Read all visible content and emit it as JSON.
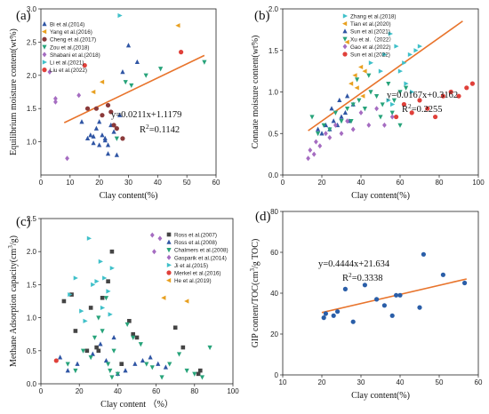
{
  "chart_data": [
    {
      "type": "scatter",
      "panel_label": "(a)",
      "xlabel": "Clay content(%)",
      "ylabel": "Equilibrium moisture content(wt%)",
      "xlim": [
        0,
        60
      ],
      "ylim": [
        0.5,
        3.0
      ],
      "xticks": [
        0,
        10,
        20,
        30,
        40,
        50,
        60
      ],
      "yticks": [
        1.0,
        1.5,
        2.0,
        2.5,
        3.0
      ],
      "grid": false,
      "legend": "top-left",
      "equation": "y=0.0211x+1.1179",
      "r2": "R²=0.1142",
      "fit": {
        "slope": 0.0211,
        "intercept": 1.1179,
        "x_range": [
          8,
          56
        ],
        "color": "#e8742c"
      },
      "series": [
        {
          "name": "Bi et al.(2014)",
          "marker": "triangle-up",
          "color": "#2f55a4",
          "x": [
            14,
            16,
            17,
            18,
            19,
            20,
            21,
            22,
            23,
            24,
            25,
            26,
            27,
            20,
            22,
            18,
            23
          ],
          "y": [
            1.3,
            1.05,
            1.1,
            0.98,
            1.2,
            1.3,
            1.1,
            1.05,
            0.95,
            1.25,
            1.15,
            0.8,
            1.4,
            0.95,
            1.02,
            1.08,
            0.82
          ]
        },
        {
          "name": "Yang et al.(2016)",
          "marker": "triangle-left",
          "color": "#e8a020",
          "x": [
            18,
            21,
            47
          ],
          "y": [
            1.75,
            1.9,
            2.75
          ]
        },
        {
          "name": "Cheng et al.(2017)",
          "marker": "circle",
          "color": "#8b3a3a",
          "x": [
            16,
            19,
            21,
            23,
            24,
            25,
            26,
            28
          ],
          "y": [
            1.5,
            1.5,
            1.4,
            1.55,
            1.45,
            1.25,
            1.2,
            1.05
          ]
        },
        {
          "name": "Zou et al.(2018)",
          "marker": "triangle-down",
          "color": "#27a37a",
          "x": [
            26,
            29,
            31,
            36,
            41,
            56
          ],
          "y": [
            1.05,
            1.9,
            1.85,
            2.0,
            2.1,
            2.2
          ]
        },
        {
          "name": "Shabani et al.(2018)",
          "marker": "diamond",
          "color": "#a56cc1",
          "x": [
            3,
            5,
            5,
            9,
            13
          ],
          "y": [
            2.05,
            1.65,
            1.6,
            0.75,
            1.7
          ]
        },
        {
          "name": "Li et al.(2021)",
          "marker": "triangle-right",
          "color": "#3fc0c9",
          "x": [
            27
          ],
          "y": [
            2.9
          ]
        },
        {
          "name": "Liu et al.(2022)",
          "marker": "circle",
          "color": "#e0403a",
          "x": [
            15,
            48
          ],
          "y": [
            2.15,
            2.35
          ]
        },
        {
          "name": "",
          "marker": "triangle-up",
          "color": "#2f55a4",
          "x": [
            30,
            33,
            28
          ],
          "y": [
            2.45,
            2.2,
            2.05
          ]
        }
      ]
    },
    {
      "type": "scatter",
      "panel_label": "(b)",
      "xlabel": "Clay content(%)",
      "ylabel": "Connate moisture content(wt%)",
      "xlim": [
        0,
        100
      ],
      "ylim": [
        0.0,
        2.0
      ],
      "xticks": [
        0,
        20,
        40,
        60,
        80,
        100
      ],
      "yticks": [
        0.0,
        0.5,
        1.0,
        1.5,
        2.0
      ],
      "grid": false,
      "legend": "top-right",
      "equation": "y=0.0167x+0.3162",
      "r2": "R²=0.2255",
      "fit": {
        "slope": 0.0167,
        "intercept": 0.3162,
        "x_range": [
          13,
          92
        ],
        "color": "#e8742c"
      },
      "series": [
        {
          "name": "Zhang et al.(2018)",
          "marker": "triangle-right",
          "color": "#3fc0c9",
          "x": [
            45,
            50,
            52,
            55,
            58,
            60,
            62,
            65,
            68,
            70,
            54,
            56,
            63,
            66
          ],
          "y": [
            1.35,
            1.25,
            1.45,
            1.7,
            1.55,
            1.25,
            1.35,
            1.45,
            1.5,
            1.55,
            0.9,
            0.85,
            1.1,
            1.0
          ]
        },
        {
          "name": "Tian et al.(2020)",
          "marker": "triangle-left",
          "color": "#e8a020",
          "x": [
            33,
            35,
            37,
            38,
            40,
            41,
            42
          ],
          "y": [
            1.6,
            1.1,
            1.2,
            1.05,
            1.3,
            0.95,
            1.25
          ]
        },
        {
          "name": "Sun et al.(2021)",
          "marker": "triangle-up",
          "color": "#2f55a4",
          "x": [
            18,
            20,
            22,
            24,
            26,
            28,
            30,
            32,
            34,
            36,
            25,
            29,
            33
          ],
          "y": [
            0.55,
            0.5,
            0.6,
            0.55,
            0.65,
            0.6,
            0.7,
            0.75,
            0.65,
            0.85,
            0.8,
            0.9,
            0.95
          ]
        },
        {
          "name": "Xu et al.（2022）",
          "marker": "triangle-down",
          "color": "#27a37a",
          "x": [
            15,
            18,
            21,
            24,
            27,
            30,
            33,
            36,
            39,
            42,
            45,
            48,
            51,
            54,
            57,
            60,
            63,
            38,
            44,
            50,
            56,
            60,
            35
          ],
          "y": [
            0.7,
            0.5,
            0.6,
            0.55,
            0.75,
            0.65,
            0.8,
            0.85,
            0.9,
            0.8,
            1.0,
            0.95,
            0.85,
            1.1,
            0.9,
            1.0,
            1.05,
            1.15,
            1.2,
            0.7,
            0.75,
            0.6,
            0.65
          ]
        },
        {
          "name": "Gao et al.(2022)",
          "marker": "diamond",
          "color": "#a56cc1",
          "x": [
            13,
            14,
            16,
            17,
            19,
            22,
            24,
            27,
            30,
            33,
            36,
            40,
            44,
            48,
            52,
            56
          ],
          "y": [
            0.2,
            0.3,
            0.25,
            0.4,
            0.35,
            0.5,
            0.45,
            0.6,
            0.5,
            0.65,
            0.55,
            0.75,
            0.6,
            0.8,
            0.6,
            0.7
          ]
        },
        {
          "name": "Sun et al.(2022)",
          "marker": "circle",
          "color": "#e0403a",
          "x": [
            58,
            62,
            66,
            70,
            74,
            78,
            82,
            86,
            90,
            94,
            97
          ],
          "y": [
            0.7,
            0.85,
            0.75,
            0.9,
            0.8,
            0.7,
            0.95,
            1.0,
            0.95,
            1.05,
            1.1
          ]
        }
      ]
    },
    {
      "type": "scatter",
      "panel_label": "(c)",
      "xlabel": "Clay content  （%）",
      "ylabel": "Methane Adsorption capacity(cm³/g)",
      "xlim": [
        0,
        100
      ],
      "ylim": [
        0.0,
        2.5
      ],
      "xticks": [
        0,
        20,
        40,
        60,
        80,
        100
      ],
      "yticks": [
        0.0,
        0.5,
        1.0,
        1.5,
        2.0,
        2.5
      ],
      "grid": false,
      "legend": "top-right",
      "series": [
        {
          "name": "Ross et al.(2007)",
          "marker": "square",
          "color": "#444444",
          "x": [
            12,
            16,
            18,
            24,
            26,
            29,
            30,
            32,
            35,
            37,
            42,
            46,
            48,
            50,
            70,
            74,
            82,
            83
          ],
          "y": [
            1.25,
            1.35,
            0.8,
            0.5,
            1.15,
            0.55,
            0.5,
            1.3,
            1.55,
            2.0,
            0.3,
            0.95,
            0.75,
            0.7,
            0.85,
            0.55,
            0.15,
            0.2
          ]
        },
        {
          "name": "Ross et al.(2008)",
          "marker": "triangle-up",
          "color": "#2f55a4",
          "x": [
            10,
            14,
            19,
            27,
            31,
            34,
            38,
            40,
            44,
            49,
            53,
            57,
            61,
            65
          ],
          "y": [
            0.4,
            0.2,
            0.3,
            0.45,
            0.6,
            0.35,
            0.7,
            0.15,
            0.2,
            0.3,
            0.35,
            0.4,
            0.3,
            0.25
          ]
        },
        {
          "name": "Chalmers et al.(2008)",
          "marker": "triangle-down",
          "color": "#27a37a",
          "x": [
            14,
            18,
            22,
            26,
            28,
            30,
            32,
            34,
            35,
            36,
            37,
            38,
            40,
            45,
            48,
            52,
            55,
            58,
            63,
            67,
            72,
            76,
            80,
            84,
            88
          ],
          "y": [
            0.3,
            0.2,
            0.5,
            0.4,
            0.7,
            1.0,
            0.8,
            1.3,
            0.3,
            0.2,
            0.1,
            0.5,
            0.15,
            0.9,
            0.7,
            0.6,
            0.3,
            0.25,
            0.1,
            0.3,
            0.45,
            0.2,
            0.15,
            0.1,
            0.55
          ]
        },
        {
          "name": "Gasparik et al.(2014)",
          "marker": "diamond",
          "color": "#a56cc1",
          "x": [
            58,
            59,
            62
          ],
          "y": [
            2.25,
            2.0,
            2.2
          ]
        },
        {
          "name": "Ji et al.(2015)",
          "marker": "triangle-right",
          "color": "#3fc0c9",
          "x": [
            15,
            21,
            25,
            27,
            29,
            31,
            33,
            35,
            37,
            18,
            23,
            32,
            36
          ],
          "y": [
            1.35,
            1.1,
            2.2,
            1.5,
            1.55,
            1.85,
            1.6,
            1.4,
            1.75,
            1.6,
            0.95,
            1.15,
            1.05
          ]
        },
        {
          "name": "Merkel et al.(2016)",
          "marker": "circle",
          "color": "#e0403a",
          "x": [
            8
          ],
          "y": [
            0.35
          ]
        },
        {
          "name": "He et al.(2019)",
          "marker": "triangle-left",
          "color": "#e8a020",
          "x": [
            64,
            76
          ],
          "y": [
            1.3,
            1.25
          ]
        }
      ]
    },
    {
      "type": "scatter",
      "panel_label": "(d)",
      "xlabel": "Clay content(%)",
      "ylabel": "GIP content/TOC(cm³/g TOC)",
      "xlim": [
        10,
        60
      ],
      "ylim": [
        0,
        80
      ],
      "xticks": [
        10,
        20,
        30,
        40,
        50,
        60
      ],
      "yticks": [
        0,
        20,
        40,
        60,
        80
      ],
      "grid": false,
      "equation": "y=0.4444x+21.634",
      "r2": "R²=0.3338",
      "fit": {
        "slope": 0.4444,
        "intercept": 21.634,
        "x_range": [
          20,
          57
        ],
        "color": "#e8742c"
      },
      "series": [
        {
          "name": "",
          "marker": "circle",
          "color": "#2a5ea8",
          "x": [
            20.5,
            21,
            23,
            24,
            26,
            28,
            31,
            34,
            36,
            38,
            39,
            40,
            45,
            46,
            51,
            56.5
          ],
          "y": [
            28,
            30,
            29,
            31,
            42,
            26,
            44,
            37,
            34,
            29,
            39,
            39,
            33,
            59,
            49,
            45
          ]
        }
      ]
    }
  ]
}
